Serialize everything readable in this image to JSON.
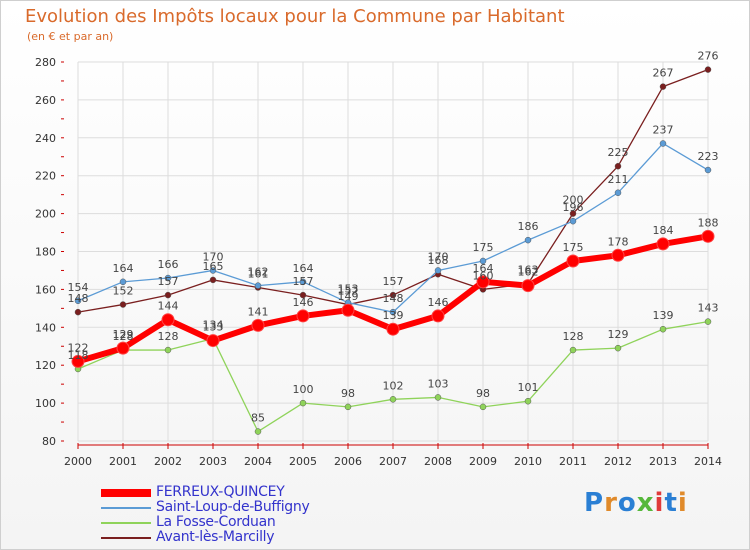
{
  "title": "Evolution des Impôts locaux pour la Commune par Habitant",
  "subtitle": "(en € et par an)",
  "logo": "Proxiti",
  "colors": {
    "title": "#d96a2b",
    "legend_text": "#3333cc",
    "grid": "#dddddd",
    "axis": "#cc0000"
  },
  "chart_data": {
    "type": "line",
    "x": [
      "2000",
      "2001",
      "2002",
      "2003",
      "2004",
      "2005",
      "2006",
      "2007",
      "2008",
      "2009",
      "2010",
      "2011",
      "2012",
      "2013",
      "2014"
    ],
    "ylim": [
      80,
      280
    ],
    "yticks": [
      80,
      100,
      120,
      140,
      160,
      180,
      200,
      220,
      240,
      260,
      280
    ],
    "grid": true,
    "legend_position": "bottom-left",
    "series": [
      {
        "name": "Avant-lès-Marcilly",
        "color": "#7a1f1f",
        "values": [
          148,
          152,
          157,
          165,
          161,
          157,
          152,
          157,
          168,
          160,
          163,
          200,
          225,
          267,
          276
        ]
      },
      {
        "name": "Saint-Loup-de-Buffigny",
        "color": "#5b9bd5",
        "values": [
          154,
          164,
          166,
          170,
          162,
          164,
          153,
          148,
          170,
          175,
          186,
          196,
          211,
          237,
          223
        ]
      },
      {
        "name": "La Fosse-Corduan",
        "color": "#8fd35a",
        "values": [
          118,
          128,
          128,
          134,
          85,
          100,
          98,
          102,
          103,
          98,
          101,
          128,
          129,
          139,
          143
        ]
      },
      {
        "name": "FERREUX-QUINCEY",
        "color": "#ff0000",
        "values": [
          122,
          129,
          144,
          133,
          141,
          146,
          149,
          139,
          146,
          164,
          162,
          175,
          178,
          184,
          188
        ]
      }
    ]
  }
}
